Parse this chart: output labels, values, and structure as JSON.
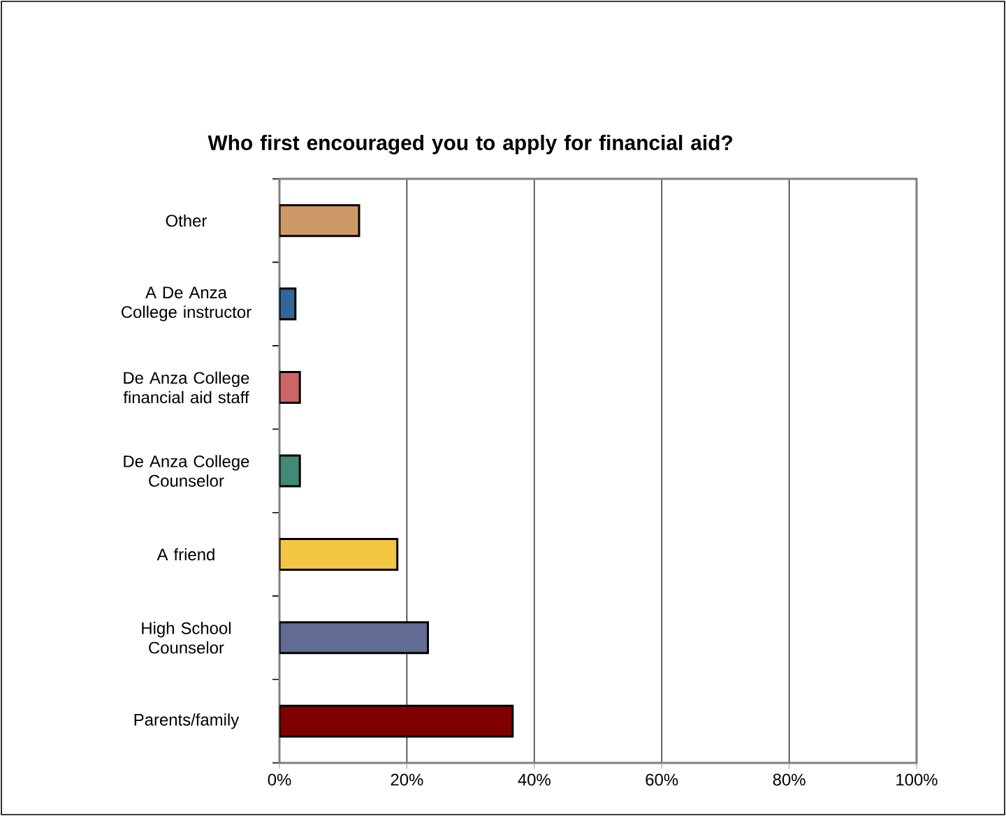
{
  "chart_data": {
    "type": "bar",
    "orientation": "horizontal",
    "title": "Who first encouraged you to apply for financial aid?",
    "categories": [
      "Other",
      "A De Anza College instructor",
      "De Anza College financial aid staff",
      "De Anza College Counselor",
      "A friend",
      "High School Counselor",
      "Parents/family"
    ],
    "values": [
      12.5,
      2.5,
      3.2,
      3.2,
      18.5,
      23.3,
      36.6
    ],
    "colors": [
      "#cc9966",
      "#336699",
      "#cc6666",
      "#448877",
      "#f4c542",
      "#626b94",
      "#800000"
    ],
    "xlim": [
      0,
      100
    ],
    "xticks": [
      {
        "value": 0,
        "label": "0%"
      },
      {
        "value": 20,
        "label": "20%"
      },
      {
        "value": 40,
        "label": "40%"
      },
      {
        "value": 60,
        "label": "60%"
      },
      {
        "value": 80,
        "label": "80%"
      },
      {
        "value": 100,
        "label": "100%"
      }
    ],
    "grid": "x"
  }
}
